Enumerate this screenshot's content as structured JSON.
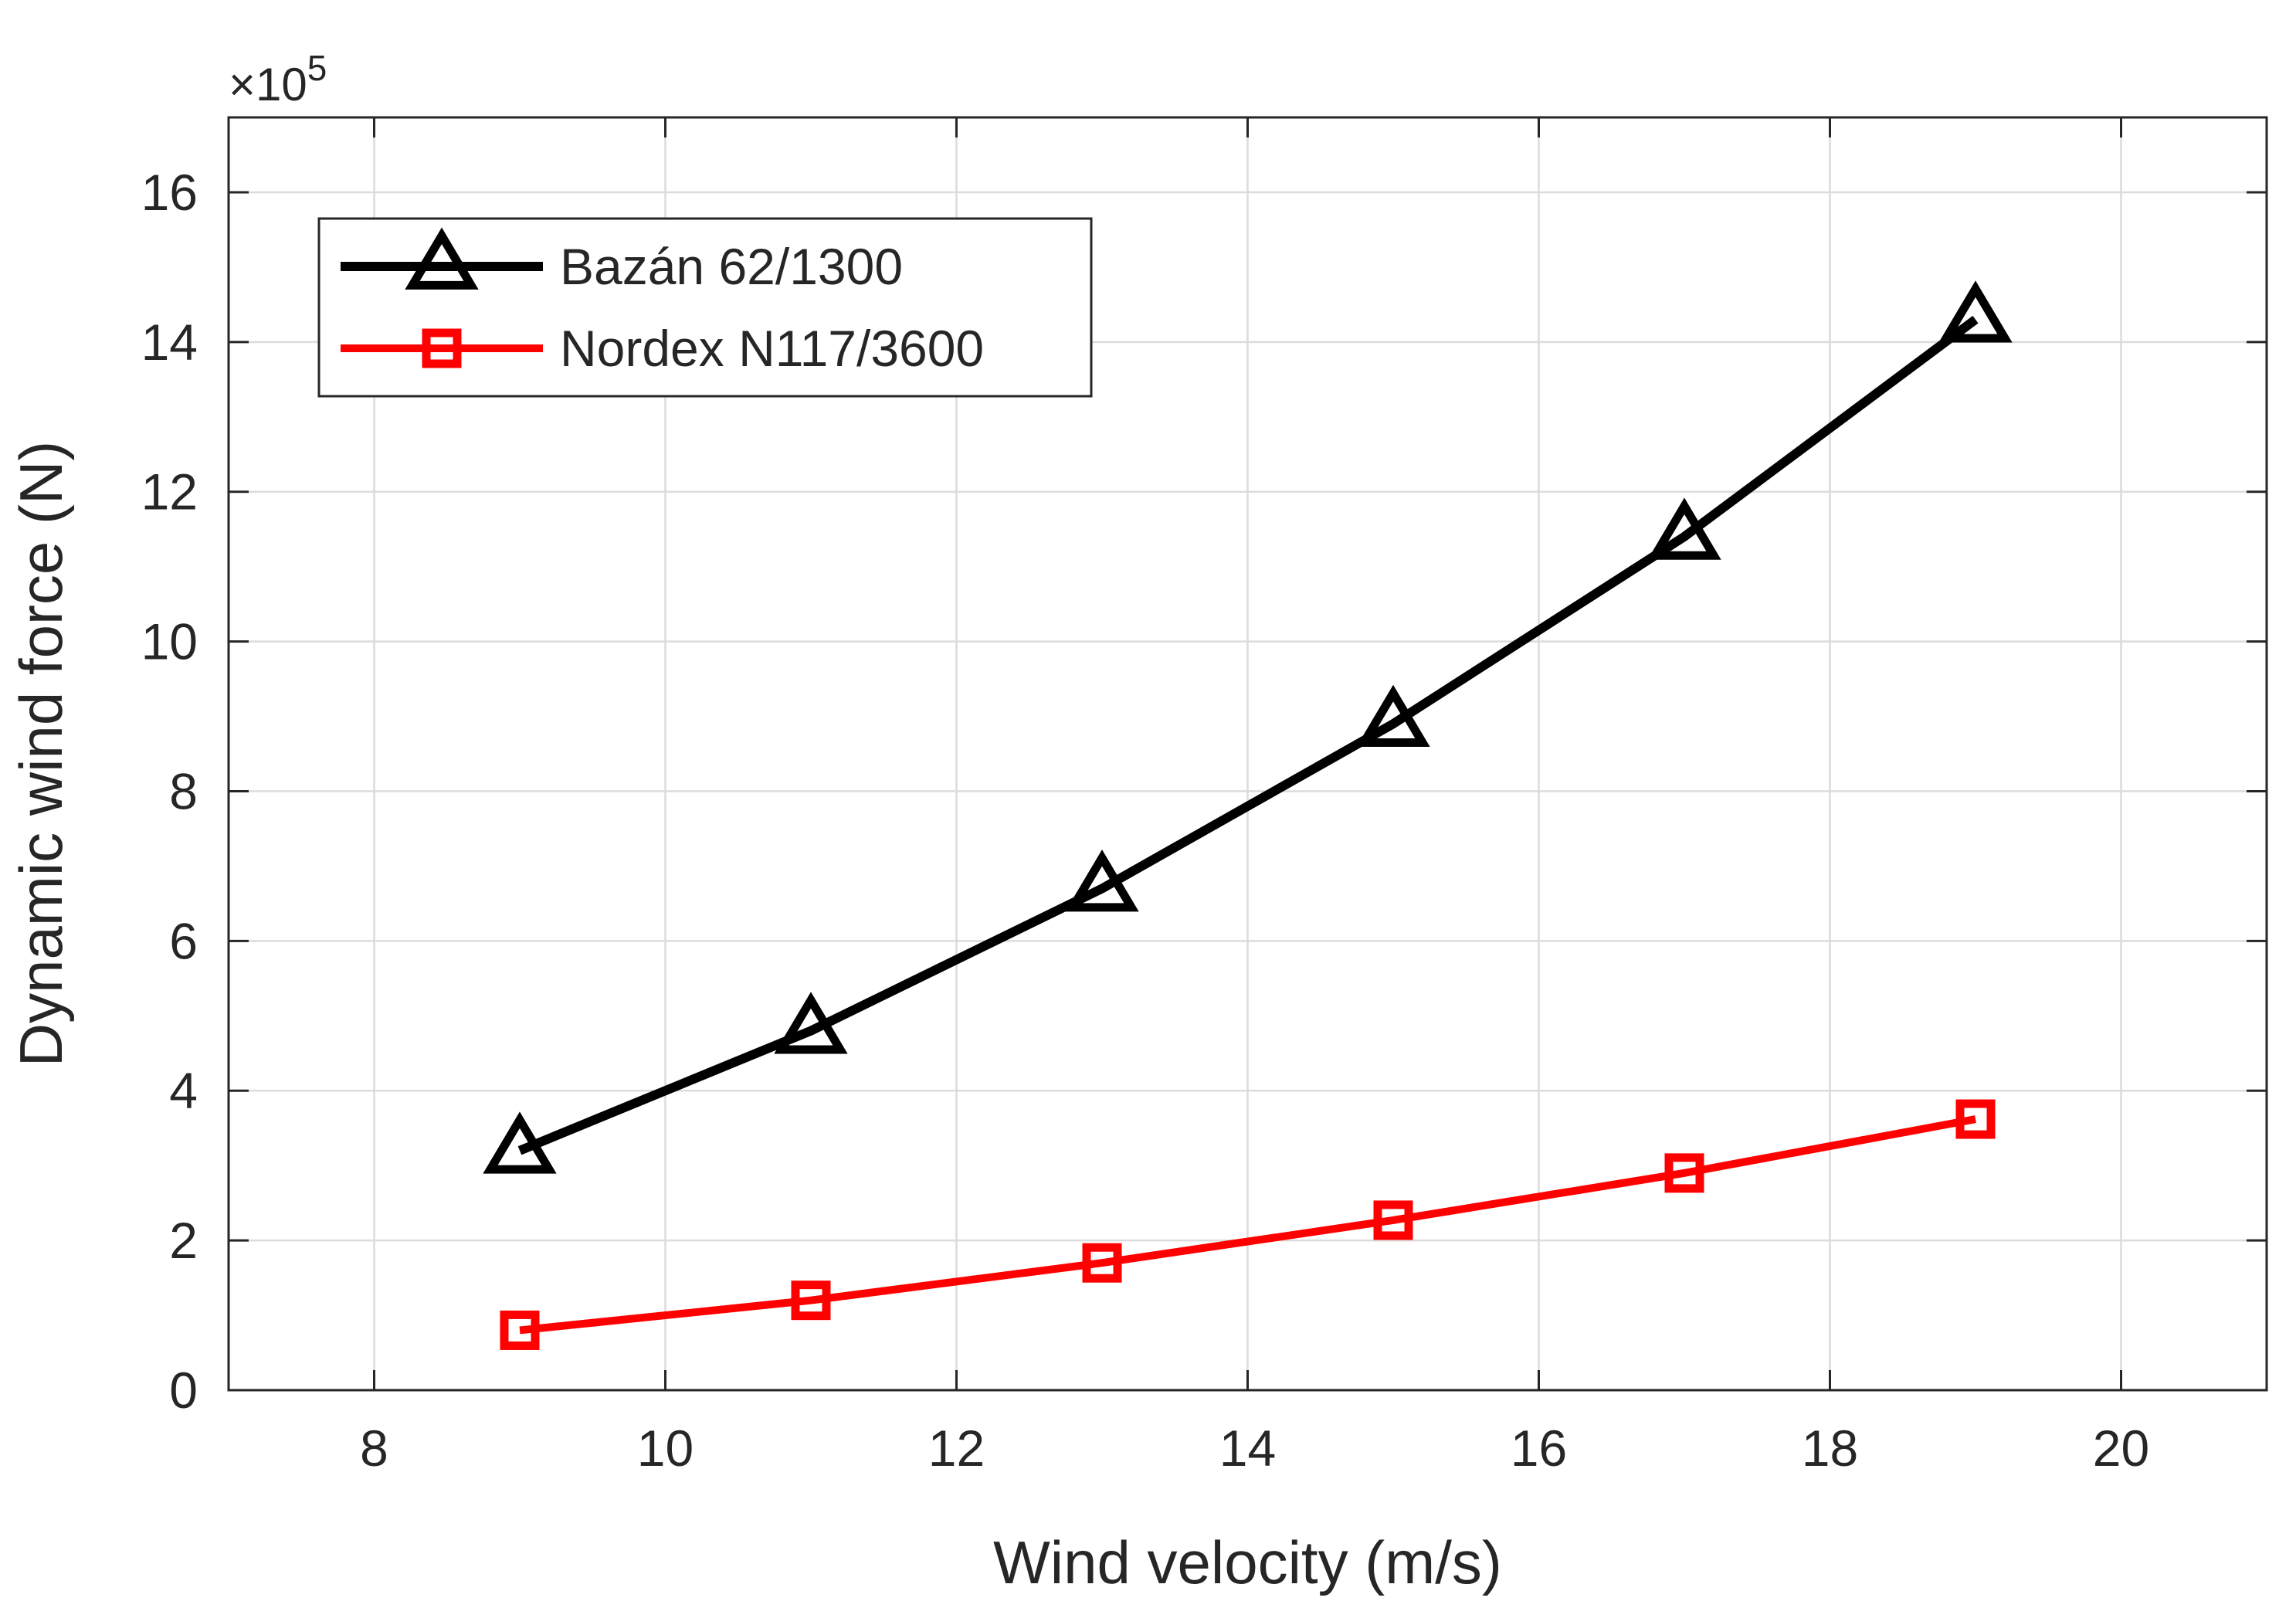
{
  "chart_data": {
    "type": "line",
    "title": "",
    "xlabel": "Wind velocity (m/s)",
    "ylabel": "Dynamic wind force (N)",
    "y_exponent_label": {
      "base": "×10",
      "exponent": "5"
    },
    "xlim": [
      7,
      21
    ],
    "ylim": [
      0,
      17
    ],
    "xticks": [
      8,
      10,
      12,
      14,
      16,
      18,
      20
    ],
    "yticks": [
      0,
      2,
      4,
      6,
      8,
      10,
      12,
      14,
      16
    ],
    "grid": true,
    "legend_position": "top-left",
    "x": [
      9,
      11,
      13,
      15,
      17,
      19
    ],
    "series": [
      {
        "name": "Bazán 62/1300",
        "color": "#000000",
        "marker": "triangle",
        "values": [
          3.2,
          4.8,
          6.7,
          8.9,
          11.4,
          14.3
        ]
      },
      {
        "name": "Nordex N117/3600",
        "color": "#ff0000",
        "marker": "square",
        "values": [
          0.8,
          1.2,
          1.7,
          2.27,
          2.9,
          3.62
        ]
      }
    ]
  }
}
